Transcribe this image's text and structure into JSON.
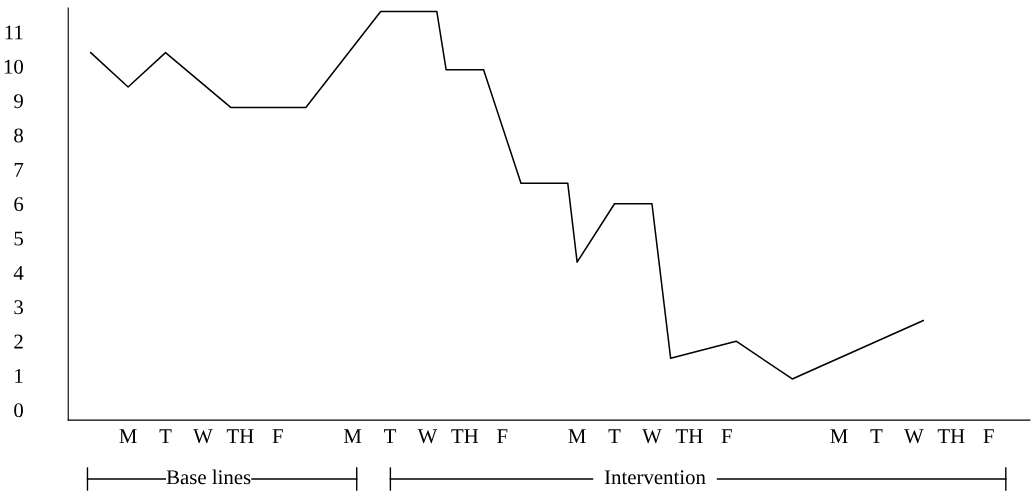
{
  "chart_data": {
    "type": "line",
    "marker": "none",
    "line_style": "solid",
    "grid": false,
    "categories": [
      null,
      null,
      null,
      null,
      "M",
      null,
      null,
      null,
      "T",
      null,
      null,
      null,
      "W",
      null,
      null,
      null,
      "TH",
      null,
      null,
      null,
      "F",
      null,
      null,
      null,
      null,
      null,
      null,
      null,
      "M",
      null,
      null,
      null,
      "T",
      null,
      null,
      null,
      "W",
      null,
      null,
      null,
      "TH",
      null,
      null,
      null,
      "F",
      null,
      null,
      null,
      null,
      null,
      null,
      null,
      "M",
      null,
      null,
      null,
      "T",
      null,
      null,
      null,
      "W",
      null,
      null,
      null,
      "TH",
      null,
      null,
      null,
      "F",
      null,
      null,
      null,
      null,
      null,
      null,
      null,
      null,
      null,
      null,
      null,
      "M",
      null,
      null,
      null,
      "T",
      null,
      null,
      null,
      "W",
      null,
      null,
      null,
      "TH",
      null,
      null,
      null,
      "F"
    ],
    "series": [
      {
        "color": "#000000",
        "values": [
          10.4,
          null,
          null,
          null,
          9.4,
          null,
          null,
          null,
          10.4,
          null,
          null,
          null,
          null,
          null,
          null,
          8.8,
          null,
          null,
          null,
          null,
          null,
          null,
          null,
          8.8,
          null,
          null,
          null,
          null,
          null,
          null,
          null,
          11.6,
          null,
          null,
          null,
          null,
          null,
          11.6,
          9.9,
          null,
          null,
          null,
          9.9,
          null,
          null,
          null,
          6.6,
          null,
          null,
          null,
          null,
          6.6,
          4.3,
          null,
          null,
          null,
          6.0,
          null,
          null,
          null,
          6.0,
          null,
          1.5,
          null,
          null,
          null,
          null,
          null,
          null,
          2.0,
          null,
          null,
          null,
          null,
          null,
          0.9,
          null,
          null,
          null,
          null,
          null,
          null,
          null,
          null,
          null,
          null,
          null,
          null,
          null,
          2.6,
          null,
          null,
          null,
          null,
          null,
          null,
          null
        ]
      }
    ],
    "ylim": [
      -0.3,
      11.7
    ],
    "yticks": [
      0,
      1,
      2,
      3,
      4,
      5,
      6,
      7,
      8,
      9,
      10,
      11
    ],
    "annotations": [
      "Base lines",
      "Intervention"
    ]
  }
}
